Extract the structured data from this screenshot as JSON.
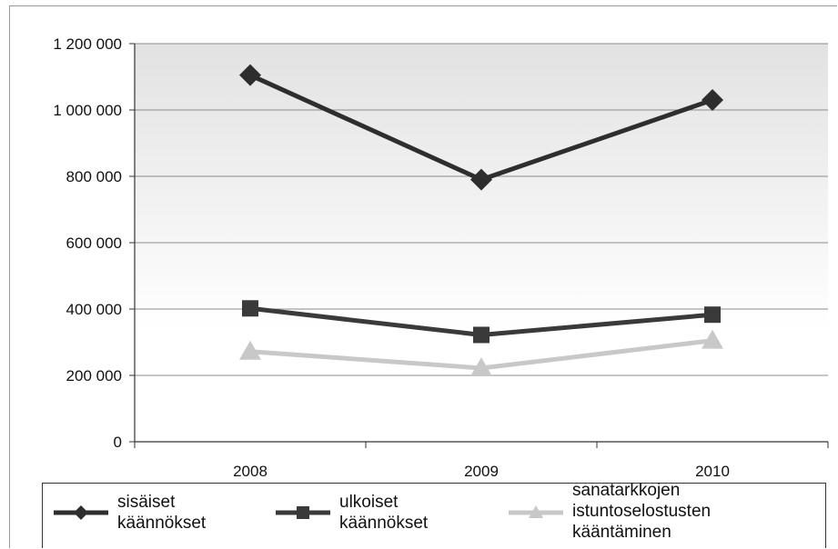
{
  "chart_data": {
    "type": "line",
    "categories": [
      "2008",
      "2009",
      "2010"
    ],
    "y_tick_labels": [
      "0",
      "200 000",
      "400 000",
      "600 000",
      "800 000",
      "1 000 000",
      "1 200 000"
    ],
    "ylim": [
      0,
      1200000
    ],
    "grid": true,
    "legend_position": "bottom",
    "series": [
      {
        "name": "sisäiset\nkäännökset",
        "values": [
          1105000,
          790000,
          1030000
        ],
        "color": "#2e2e2e",
        "marker": "diamond"
      },
      {
        "name": "ulkoiset\nkäännökset",
        "values": [
          402000,
          322000,
          383000
        ],
        "color": "#3a3a3a",
        "marker": "square"
      },
      {
        "name": "sanatarkkojen\nistuntoselostusten\nkääntäminen",
        "values": [
          272000,
          222000,
          305000
        ],
        "color": "#c8c8c8",
        "marker": "triangle"
      }
    ]
  }
}
